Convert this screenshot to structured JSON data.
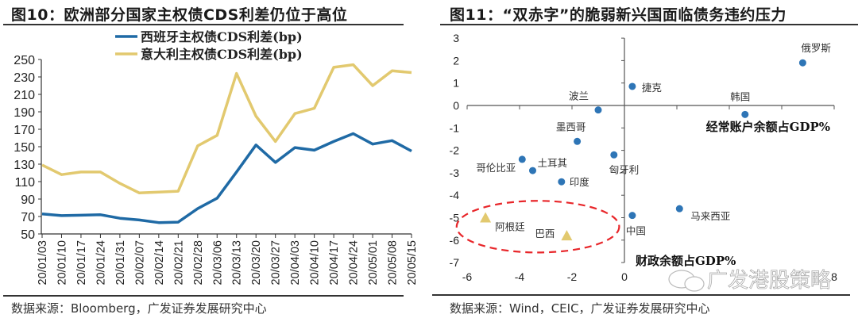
{
  "left": {
    "figure_title": "图10：欧洲部分国家主权债CDS利差仍位于高位",
    "source": "数据来源：Bloomberg，广发证券发展研究中心"
  },
  "right": {
    "figure_title": "图11：“双赤字”的脆弱新兴国面临债务违约压力",
    "source": "数据来源：Wind，CEIC，广发证券发展研究中心",
    "watermark": "广发港股策略"
  },
  "chart_data": [
    {
      "type": "line",
      "title": "图10：欧洲部分国家主权债CDS利差仍位于高位",
      "xlabel": "",
      "ylabel": "",
      "ylim": [
        50,
        250
      ],
      "yticks": [
        "250",
        "230",
        "210",
        "190",
        "170",
        "150",
        "130",
        "110",
        "90",
        "70",
        "50"
      ],
      "legend_position": "top-center",
      "categories": [
        "20/01/03",
        "20/01/10",
        "20/01/17",
        "20/01/24",
        "20/01/31",
        "20/02/07",
        "20/02/14",
        "20/02/21",
        "20/02/28",
        "20/03/06",
        "20/03/13",
        "20/03/20",
        "20/03/27",
        "20/04/03",
        "20/04/10",
        "20/04/17",
        "20/04/24",
        "20/05/01",
        "20/05/08",
        "20/05/15"
      ],
      "series": [
        {
          "name": "西班牙主权债CDS利差(bp)",
          "color": "#1f6aa5",
          "values": [
            73,
            71,
            71.5,
            72,
            68,
            66,
            63,
            63.5,
            79,
            91,
            121,
            152,
            132,
            149,
            146,
            156,
            165,
            153,
            157,
            145
          ]
        },
        {
          "name": "意大利主权债CDS利差(bp)",
          "color": "#e2c96f",
          "values": [
            129,
            118,
            121,
            121,
            108,
            97,
            98,
            99,
            151,
            163,
            234,
            185,
            156,
            188,
            194,
            241,
            244,
            220,
            237,
            235
          ]
        }
      ]
    },
    {
      "type": "scatter",
      "title": "图11：“双赤字”的脆弱新兴国面临债务违约压力",
      "xlabel": "经常账户余额占GDP%",
      "ylabel": "财政余额占GDP%",
      "xlim": [
        -6,
        8
      ],
      "ylim": [
        -7,
        3
      ],
      "xticks": [
        "-6",
        "-4",
        "-2",
        "0",
        "8"
      ],
      "yticks": [
        "3",
        "2",
        "1",
        "0",
        "-1",
        "-2",
        "-3",
        "-4",
        "-5",
        "-6",
        "-7"
      ],
      "points": [
        {
          "label": "俄罗斯",
          "x": 6.8,
          "y": 1.9,
          "marker": "circle",
          "color": "#2e75b6"
        },
        {
          "label": "捷克",
          "x": 0.3,
          "y": 0.85,
          "marker": "circle",
          "color": "#2e75b6"
        },
        {
          "label": "韩国",
          "x": 4.6,
          "y": -0.4,
          "marker": "circle",
          "color": "#2e75b6"
        },
        {
          "label": "波兰",
          "x": -1.0,
          "y": -0.2,
          "marker": "circle",
          "color": "#2e75b6"
        },
        {
          "label": "墨西哥",
          "x": -1.8,
          "y": -1.6,
          "marker": "circle",
          "color": "#2e75b6"
        },
        {
          "label": "匈牙利",
          "x": -0.4,
          "y": -2.2,
          "marker": "circle",
          "color": "#2e75b6"
        },
        {
          "label": "哥伦比亚",
          "x": -3.9,
          "y": -2.4,
          "marker": "circle",
          "color": "#2e75b6"
        },
        {
          "label": "土耳其",
          "x": -3.5,
          "y": -2.9,
          "marker": "circle",
          "color": "#2e75b6"
        },
        {
          "label": "印度",
          "x": -2.4,
          "y": -3.4,
          "marker": "circle",
          "color": "#2e75b6"
        },
        {
          "label": "中国",
          "x": 0.3,
          "y": -4.9,
          "marker": "circle",
          "color": "#2e75b6"
        },
        {
          "label": "马来西亚",
          "x": 2.1,
          "y": -4.6,
          "marker": "circle",
          "color": "#2e75b6"
        },
        {
          "label": "阿根廷",
          "x": -5.3,
          "y": -5.0,
          "marker": "triangle",
          "color": "#e2c96f"
        },
        {
          "label": "巴西",
          "x": -2.2,
          "y": -5.8,
          "marker": "triangle",
          "color": "#e2c96f"
        }
      ],
      "highlight": {
        "type": "dashed-ellipse",
        "color": "#e8262a",
        "center": [
          -3.3,
          -5.4
        ],
        "rx_units": 3.1,
        "ry_units": 1.15
      }
    }
  ]
}
